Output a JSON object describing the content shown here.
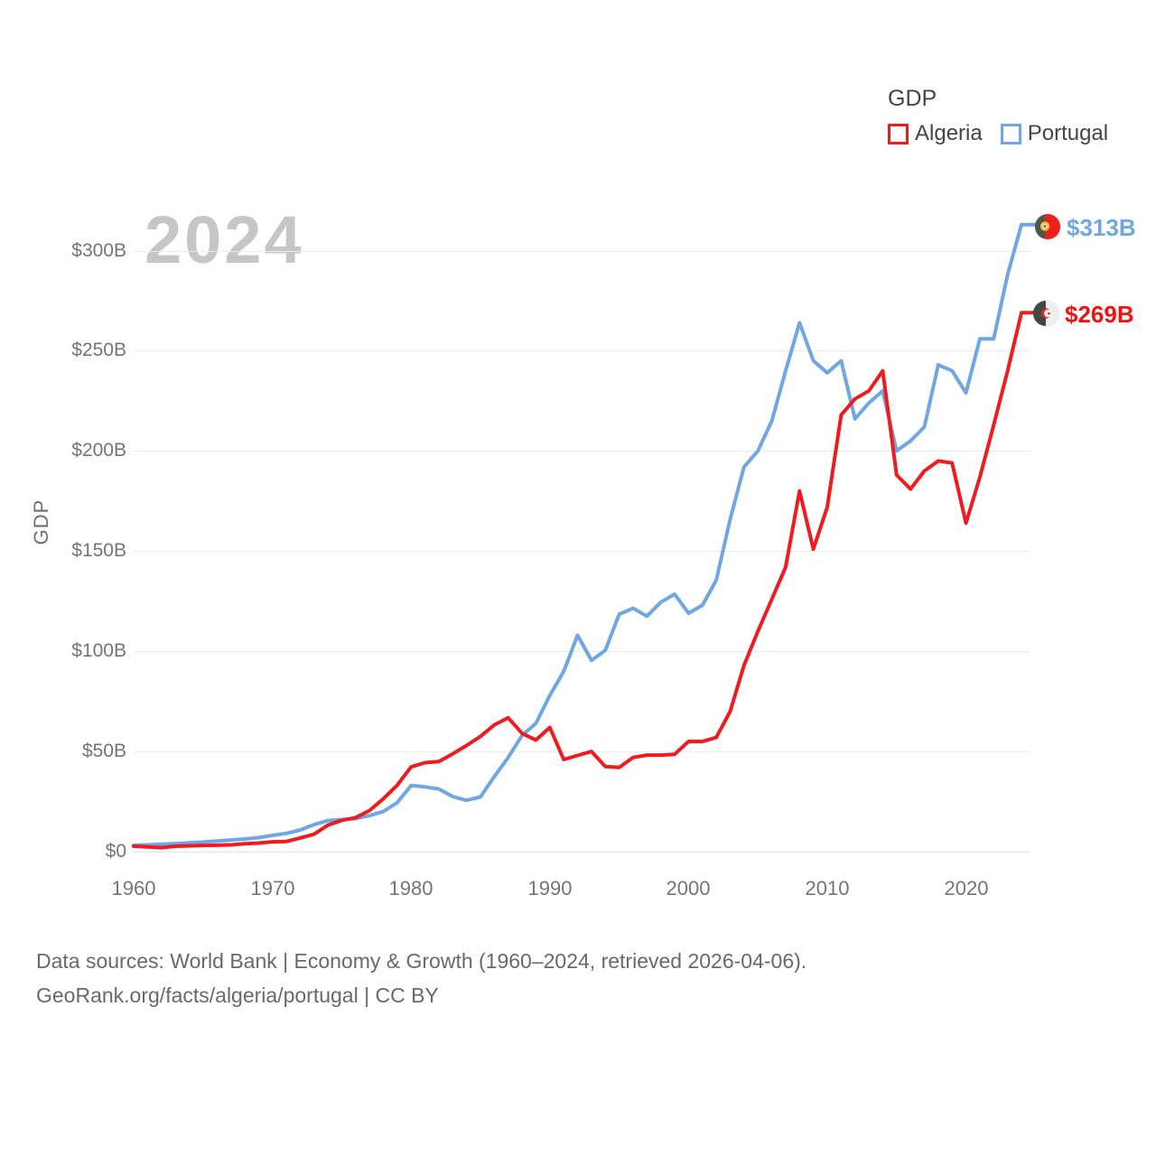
{
  "legend": {
    "title": "GDP",
    "items": [
      {
        "label": "Algeria",
        "color": "#f11a1e"
      },
      {
        "label": "Portugal",
        "color": "#6fa6e4"
      }
    ]
  },
  "watermark": "2024",
  "y_axis": {
    "title": "GDP",
    "ticks": [
      "$0",
      "$50B",
      "$100B",
      "$150B",
      "$200B",
      "$250B",
      "$300B"
    ]
  },
  "x_axis": {
    "ticks": [
      "1960",
      "1970",
      "1980",
      "1990",
      "2000",
      "2010",
      "2020"
    ]
  },
  "end_labels": {
    "portugal": {
      "series": "Portugal",
      "value": "$313B",
      "color": "#6fa6e4"
    },
    "algeria": {
      "series": "Algeria",
      "value": "$269B",
      "color": "#f31212"
    }
  },
  "footer": {
    "line1": "Data sources: World Bank | Economy & Growth (1960–2024, retrieved 2026-04-06).",
    "line2": "GeoRank.org/facts/algeria/portugal | CC BY"
  },
  "chart_data": {
    "type": "line",
    "title": "GDP",
    "ylabel": "GDP",
    "xlabel": "",
    "ylim": [
      0,
      320
    ],
    "grid": true,
    "legend_position": "top-right",
    "x": [
      1960,
      1961,
      1962,
      1963,
      1964,
      1965,
      1966,
      1967,
      1968,
      1969,
      1970,
      1971,
      1972,
      1973,
      1974,
      1975,
      1976,
      1977,
      1978,
      1979,
      1980,
      1981,
      1982,
      1983,
      1984,
      1985,
      1986,
      1987,
      1988,
      1989,
      1990,
      1991,
      1992,
      1993,
      1994,
      1995,
      1996,
      1997,
      1998,
      1999,
      2000,
      2001,
      2002,
      2003,
      2004,
      2005,
      2006,
      2007,
      2008,
      2009,
      2010,
      2011,
      2012,
      2013,
      2014,
      2015,
      2016,
      2017,
      2018,
      2019,
      2020,
      2021,
      2022,
      2023,
      2024
    ],
    "x_tick_values": [
      1960,
      1970,
      1980,
      1990,
      2000,
      2010,
      2020
    ],
    "y_tick_values": [
      0,
      50,
      100,
      150,
      200,
      250,
      300
    ],
    "units": "billions of USD",
    "series": [
      {
        "name": "Portugal",
        "color": "#6fa6e4",
        "final_label": "$313B",
        "values": [
          3.2,
          3.4,
          3.7,
          4.0,
          4.4,
          4.8,
          5.3,
          5.8,
          6.3,
          7.0,
          8.1,
          9.1,
          10.8,
          13.5,
          15.5,
          16.0,
          16.5,
          18.0,
          20.0,
          24.5,
          33.0,
          32.3,
          31.3,
          27.5,
          25.6,
          27.3,
          37.5,
          47.0,
          58.0,
          64.0,
          78.0,
          90.0,
          108.0,
          95.5,
          100.5,
          118.5,
          121.5,
          117.5,
          124.5,
          128.5,
          119.0,
          123.0,
          135.5,
          166.0,
          192.0,
          200.0,
          215.0,
          240.0,
          264.0,
          245.0,
          239.0,
          245.0,
          216.0,
          224.0,
          230.0,
          200.0,
          205.0,
          212.0,
          243.0,
          240.0,
          229.0,
          256.0,
          256.0,
          288.0,
          313.0
        ]
      },
      {
        "name": "Algeria",
        "color": "#f11a1e",
        "final_label": "$269B",
        "values": [
          2.7,
          2.4,
          2.0,
          2.7,
          2.9,
          3.1,
          3.2,
          3.4,
          3.9,
          4.3,
          4.9,
          5.1,
          6.8,
          8.7,
          13.2,
          15.6,
          17.0,
          20.5,
          26.4,
          33.2,
          42.3,
          44.4,
          45.0,
          48.8,
          53.0,
          57.5,
          63.3,
          66.8,
          59.0,
          55.7,
          62.0,
          46.0,
          48.0,
          50.0,
          42.5,
          42.0,
          47.0,
          48.2,
          48.2,
          48.6,
          55.0,
          55.0,
          57.0,
          70.0,
          93.0,
          110.0,
          126.0,
          142.0,
          180.0,
          151.0,
          172.0,
          218.0,
          226.0,
          230.0,
          240.0,
          188.0,
          181.0,
          190.0,
          195.0,
          194.0,
          164.0,
          187.0,
          213.0,
          240.0,
          269.0
        ]
      }
    ]
  }
}
